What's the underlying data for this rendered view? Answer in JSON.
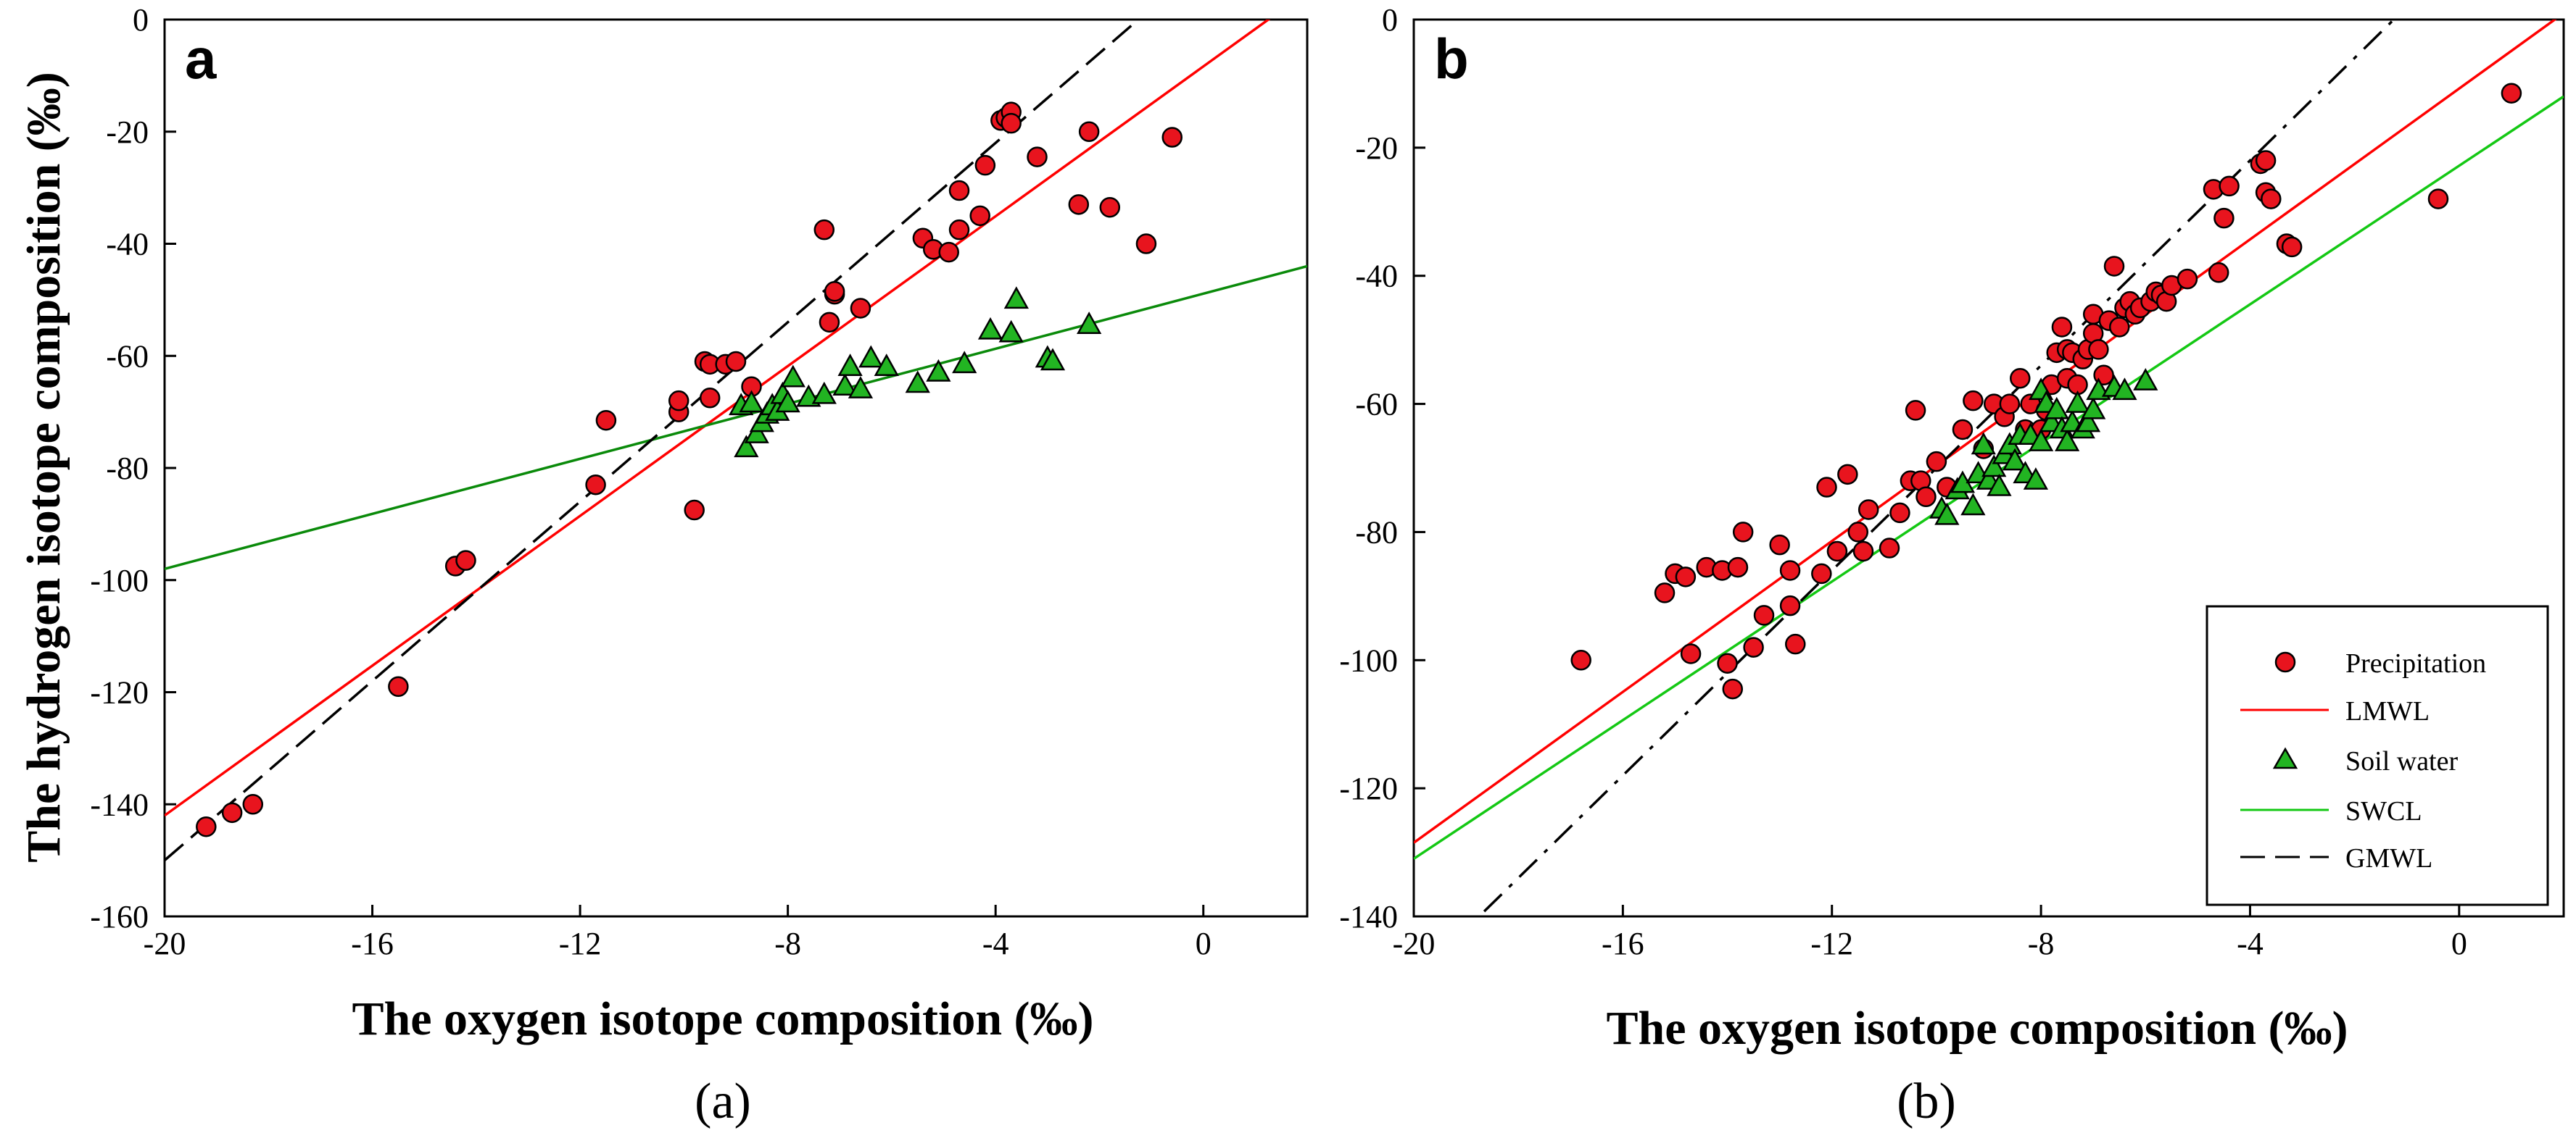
{
  "colors": {
    "precipitation_fill": "#e8141e",
    "precipitation_stroke": "#000000",
    "soil_fill": "#22b422",
    "soil_stroke": "#000000",
    "lmwl": "#ff0000",
    "swcl_a": "#0a8a0a",
    "swcl_b": "#14c814",
    "gmwl": "#000000"
  },
  "chart_data": [
    {
      "type": "scatter",
      "panel_letter": "a",
      "caption": "(a)",
      "xlabel": "The oxygen isotope composition (‰)",
      "ylabel": "The hydrogen isotope composition (‰)",
      "xlim": [
        -20,
        2
      ],
      "ylim": [
        -160,
        0
      ],
      "xticks": [
        -20,
        -16,
        -12,
        -8,
        -4,
        0
      ],
      "yticks": [
        -160,
        -140,
        -120,
        -100,
        -80,
        -60,
        -40,
        -20,
        0
      ],
      "series": [
        {
          "name": "Precipitation",
          "kind": "points",
          "marker": "circle",
          "points": [
            [
              -19.2,
              -144
            ],
            [
              -18.7,
              -141.5
            ],
            [
              -18.3,
              -140
            ],
            [
              -15.5,
              -119
            ],
            [
              -14.4,
              -97.5
            ],
            [
              -14.2,
              -96.5
            ],
            [
              -11.7,
              -83
            ],
            [
              -11.5,
              -71.5
            ],
            [
              -10.1,
              -70
            ],
            [
              -10.1,
              -68
            ],
            [
              -9.8,
              -87.5
            ],
            [
              -9.6,
              -61
            ],
            [
              -9.5,
              -61.5
            ],
            [
              -9.5,
              -67.5
            ],
            [
              -9.2,
              -61.5
            ],
            [
              -9.0,
              -61
            ],
            [
              -8.7,
              -65.5
            ],
            [
              -7.2,
              -54
            ],
            [
              -7.3,
              -37.5
            ],
            [
              -7.1,
              -49
            ],
            [
              -7.1,
              -48.5
            ],
            [
              -6.6,
              -51.5
            ],
            [
              -5.4,
              -39
            ],
            [
              -5.2,
              -41
            ],
            [
              -4.9,
              -41.5
            ],
            [
              -4.7,
              -37.5
            ],
            [
              -4.7,
              -30.5
            ],
            [
              -4.3,
              -35
            ],
            [
              -4.2,
              -26
            ],
            [
              -3.9,
              -18
            ],
            [
              -3.8,
              -17.5
            ],
            [
              -3.7,
              -16.5
            ],
            [
              -3.7,
              -18.5
            ],
            [
              -3.2,
              -24.5
            ],
            [
              -2.4,
              -33
            ],
            [
              -2.2,
              -20
            ],
            [
              -1.8,
              -33.5
            ],
            [
              -1.1,
              -40
            ],
            [
              -0.6,
              -21
            ]
          ]
        },
        {
          "name": "Soil water",
          "kind": "points",
          "marker": "triangle",
          "points": [
            [
              -8.9,
              -69
            ],
            [
              -8.8,
              -76.5
            ],
            [
              -8.7,
              -68.5
            ],
            [
              -8.6,
              -74
            ],
            [
              -8.5,
              -72
            ],
            [
              -8.4,
              -70.5
            ],
            [
              -8.3,
              -69
            ],
            [
              -8.2,
              -70
            ],
            [
              -8.1,
              -67
            ],
            [
              -8.0,
              -68.5
            ],
            [
              -7.9,
              -64
            ],
            [
              -7.6,
              -67.5
            ],
            [
              -7.3,
              -67
            ],
            [
              -6.9,
              -65.5
            ],
            [
              -6.8,
              -62
            ],
            [
              -6.6,
              -66
            ],
            [
              -6.4,
              -60.5
            ],
            [
              -6.1,
              -62
            ],
            [
              -5.5,
              -65
            ],
            [
              -5.1,
              -63
            ],
            [
              -4.6,
              -61.5
            ],
            [
              -4.1,
              -55.5
            ],
            [
              -3.7,
              -56
            ],
            [
              -3.6,
              -50
            ],
            [
              -3.0,
              -60.5
            ],
            [
              -2.9,
              -61
            ],
            [
              -2.2,
              -54.5
            ]
          ]
        },
        {
          "name": "LMWL",
          "kind": "line",
          "style": "solid",
          "color_key": "lmwl",
          "x": [
            -20,
            2
          ],
          "y": [
            -142,
            5
          ]
        },
        {
          "name": "SWCL",
          "kind": "line",
          "style": "solid",
          "color_key": "swcl_a",
          "x": [
            -20,
            2
          ],
          "y": [
            -98,
            -44
          ]
        },
        {
          "name": "GMWL",
          "kind": "line",
          "style": "dashed",
          "color_key": "gmwl",
          "x": [
            -20,
            2
          ],
          "y": [
            -150,
            26
          ]
        }
      ]
    },
    {
      "type": "scatter",
      "panel_letter": "b",
      "caption": "(b)",
      "xlabel": "The oxygen isotope composition (‰)",
      "ylabel": "",
      "xlim": [
        -20,
        2
      ],
      "ylim": [
        -140,
        0
      ],
      "xticks": [
        -20,
        -16,
        -12,
        -8,
        -4,
        0
      ],
      "yticks": [
        -140,
        -120,
        -100,
        -80,
        -60,
        -40,
        -20,
        0
      ],
      "legend": {
        "position": "bottom-right",
        "entries": [
          {
            "label": "Precipitation",
            "kind": "marker",
            "marker": "circle"
          },
          {
            "label": "LMWL",
            "kind": "line",
            "style": "solid",
            "color_key": "lmwl"
          },
          {
            "label": "Soil water",
            "kind": "marker",
            "marker": "triangle"
          },
          {
            "label": "SWCL",
            "kind": "line",
            "style": "solid",
            "color_key": "swcl_b"
          },
          {
            "label": "GMWL",
            "kind": "line",
            "style": "dashed",
            "color_key": "gmwl"
          }
        ]
      },
      "series": [
        {
          "name": "Precipitation",
          "kind": "points",
          "marker": "circle",
          "points": [
            [
              -16.8,
              -100
            ],
            [
              -15.2,
              -89.5
            ],
            [
              -15.0,
              -86.5
            ],
            [
              -14.8,
              -87
            ],
            [
              -14.7,
              -99
            ],
            [
              -14.4,
              -85.5
            ],
            [
              -14.1,
              -86
            ],
            [
              -14.0,
              -100.5
            ],
            [
              -13.9,
              -104.5
            ],
            [
              -13.8,
              -85.5
            ],
            [
              -13.7,
              -80
            ],
            [
              -13.5,
              -98
            ],
            [
              -13.3,
              -93
            ],
            [
              -13.0,
              -82
            ],
            [
              -12.8,
              -86
            ],
            [
              -12.8,
              -91.5
            ],
            [
              -12.7,
              -97.5
            ],
            [
              -12.2,
              -86.5
            ],
            [
              -12.1,
              -73
            ],
            [
              -11.9,
              -83
            ],
            [
              -11.7,
              -71
            ],
            [
              -11.5,
              -80
            ],
            [
              -11.4,
              -83
            ],
            [
              -11.3,
              -76.5
            ],
            [
              -10.9,
              -82.5
            ],
            [
              -10.7,
              -77
            ],
            [
              -10.5,
              -72
            ],
            [
              -10.4,
              -61
            ],
            [
              -10.3,
              -72
            ],
            [
              -10.2,
              -74.5
            ],
            [
              -10.0,
              -69
            ],
            [
              -9.8,
              -73
            ],
            [
              -9.5,
              -64
            ],
            [
              -9.3,
              -59.5
            ],
            [
              -9.1,
              -67
            ],
            [
              -8.9,
              -60
            ],
            [
              -8.7,
              -62
            ],
            [
              -8.6,
              -60
            ],
            [
              -8.4,
              -56
            ],
            [
              -8.3,
              -64
            ],
            [
              -8.2,
              -60
            ],
            [
              -8.0,
              -64
            ],
            [
              -7.9,
              -61
            ],
            [
              -7.8,
              -57
            ],
            [
              -7.7,
              -52
            ],
            [
              -7.6,
              -48
            ],
            [
              -7.5,
              -51.5
            ],
            [
              -7.5,
              -56
            ],
            [
              -7.4,
              -52
            ],
            [
              -7.3,
              -57
            ],
            [
              -7.2,
              -53
            ],
            [
              -7.1,
              -51.5
            ],
            [
              -7.0,
              -46
            ],
            [
              -7.0,
              -49
            ],
            [
              -6.9,
              -51.5
            ],
            [
              -6.8,
              -55.5
            ],
            [
              -6.7,
              -47
            ],
            [
              -6.6,
              -38.5
            ],
            [
              -6.5,
              -48
            ],
            [
              -6.4,
              -45
            ],
            [
              -6.3,
              -44
            ],
            [
              -6.2,
              -46
            ],
            [
              -6.1,
              -45
            ],
            [
              -5.9,
              -44
            ],
            [
              -5.8,
              -42.5
            ],
            [
              -5.7,
              -43
            ],
            [
              -5.6,
              -44
            ],
            [
              -5.5,
              -41.5
            ],
            [
              -5.2,
              -40.5
            ],
            [
              -4.7,
              -26.5
            ],
            [
              -4.6,
              -39.5
            ],
            [
              -4.5,
              -31
            ],
            [
              -4.4,
              -26
            ],
            [
              -3.8,
              -22.5
            ],
            [
              -3.7,
              -22
            ],
            [
              -3.7,
              -27
            ],
            [
              -3.6,
              -28
            ],
            [
              -3.3,
              -35
            ],
            [
              -3.2,
              -35.5
            ],
            [
              -0.4,
              -28
            ],
            [
              1.0,
              -11.5
            ]
          ]
        },
        {
          "name": "Soil water",
          "kind": "points",
          "marker": "triangle",
          "points": [
            [
              -9.9,
              -76.5
            ],
            [
              -9.8,
              -77.5
            ],
            [
              -9.6,
              -73.5
            ],
            [
              -9.5,
              -72.5
            ],
            [
              -9.3,
              -76
            ],
            [
              -9.2,
              -71
            ],
            [
              -9.1,
              -66.5
            ],
            [
              -9.0,
              -72
            ],
            [
              -8.9,
              -70
            ],
            [
              -8.8,
              -73
            ],
            [
              -8.7,
              -68
            ],
            [
              -8.6,
              -66.5
            ],
            [
              -8.5,
              -69
            ],
            [
              -8.4,
              -65
            ],
            [
              -8.3,
              -71
            ],
            [
              -8.2,
              -65
            ],
            [
              -8.1,
              -72
            ],
            [
              -8.0,
              -66
            ],
            [
              -8.0,
              -58
            ],
            [
              -7.9,
              -60
            ],
            [
              -7.8,
              -63
            ],
            [
              -7.7,
              -61
            ],
            [
              -7.6,
              -64
            ],
            [
              -7.5,
              -66
            ],
            [
              -7.4,
              -63
            ],
            [
              -7.3,
              -60
            ],
            [
              -7.2,
              -64
            ],
            [
              -7.1,
              -63
            ],
            [
              -7.0,
              -61
            ],
            [
              -6.9,
              -58
            ],
            [
              -6.6,
              -57.5
            ],
            [
              -6.4,
              -58
            ],
            [
              -6.0,
              -56.5
            ]
          ]
        },
        {
          "name": "LMWL",
          "kind": "line",
          "style": "solid",
          "color_key": "lmwl",
          "x": [
            -20,
            2
          ],
          "y": [
            -128.5,
            1
          ]
        },
        {
          "name": "SWCL",
          "kind": "line",
          "style": "solid",
          "color_key": "swcl_b",
          "x": [
            -20,
            2
          ],
          "y": [
            -131,
            -12
          ]
        },
        {
          "name": "GMWL",
          "kind": "line",
          "style": "dashed",
          "color_key": "gmwl",
          "x": [
            -20,
            2
          ],
          "y": [
            -150,
            26
          ]
        }
      ]
    }
  ]
}
